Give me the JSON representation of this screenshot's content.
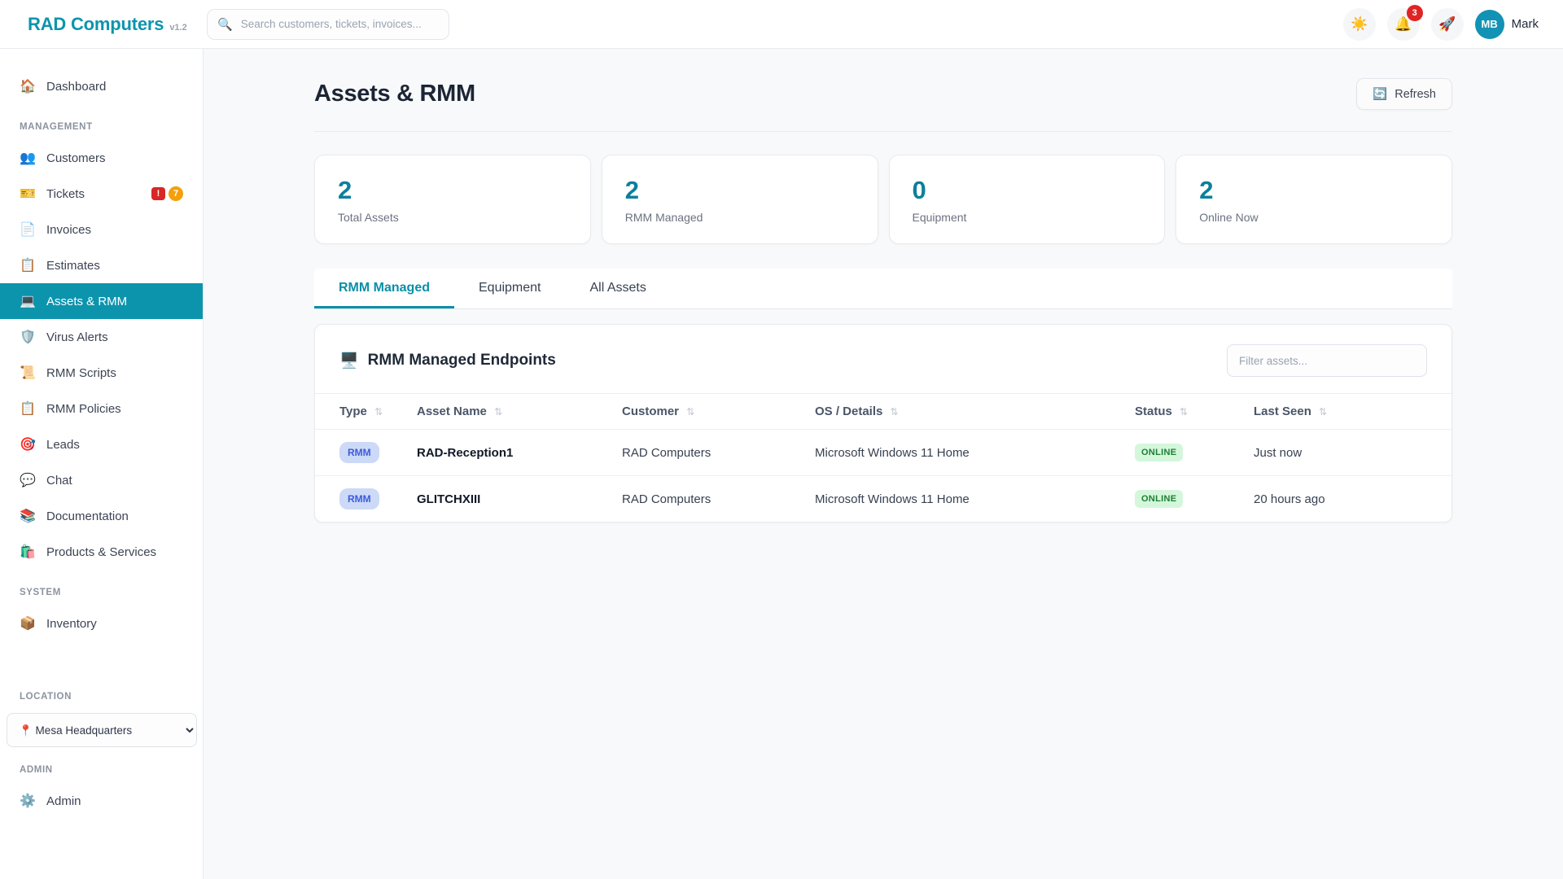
{
  "header": {
    "logo": "RAD Computers",
    "version": "v1.2",
    "search_icon": "🔍",
    "search_placeholder": "Search customers, tickets, invoices...",
    "theme_icon": "☀️",
    "bell_icon": "🔔",
    "bell_badge": "3",
    "rocket_icon": "🚀",
    "avatar_initials": "MB",
    "user_name": "Mark"
  },
  "sidebar": {
    "sections": {
      "management": "MANAGEMENT",
      "system": "SYSTEM",
      "location": "LOCATION",
      "admin": "ADMIN"
    },
    "items": [
      {
        "icon": "🏠",
        "label": "Dashboard"
      },
      {
        "icon": "👥",
        "label": "Customers"
      },
      {
        "icon": "🎫",
        "label": "Tickets",
        "badge_alert": "!",
        "badge_count": "7"
      },
      {
        "icon": "📄",
        "label": "Invoices"
      },
      {
        "icon": "📋",
        "label": "Estimates"
      },
      {
        "icon": "💻",
        "label": "Assets & RMM"
      },
      {
        "icon": "🛡️",
        "label": "Virus Alerts"
      },
      {
        "icon": "📜",
        "label": "RMM Scripts"
      },
      {
        "icon": "📋",
        "label": "RMM Policies"
      },
      {
        "icon": "🎯",
        "label": "Leads"
      },
      {
        "icon": "💬",
        "label": "Chat"
      },
      {
        "icon": "📚",
        "label": "Documentation"
      },
      {
        "icon": "🛍️",
        "label": "Products & Services"
      },
      {
        "icon": "📦",
        "label": "Inventory"
      },
      {
        "icon": "⚙️",
        "label": "Admin"
      }
    ],
    "location_select": {
      "display": "📍 Mesa Headquarters"
    }
  },
  "page": {
    "title": "Assets & RMM",
    "refresh_icon": "🔄",
    "refresh_label": "Refresh"
  },
  "stats": [
    {
      "value": "2",
      "label": "Total Assets"
    },
    {
      "value": "2",
      "label": "RMM Managed"
    },
    {
      "value": "0",
      "label": "Equipment"
    },
    {
      "value": "2",
      "label": "Online Now"
    }
  ],
  "tabs": [
    {
      "label": "RMM Managed"
    },
    {
      "label": "Equipment"
    },
    {
      "label": "All Assets"
    }
  ],
  "endpoints": {
    "icon": "🖥️",
    "title": "RMM Managed Endpoints",
    "filter_placeholder": "Filter assets...",
    "sort_icon": "⇅",
    "columns": [
      "Type",
      "Asset Name",
      "Customer",
      "OS / Details",
      "Status",
      "Last Seen"
    ],
    "rows": [
      {
        "type_badge": "RMM",
        "asset_name": "RAD-Reception1",
        "customer": "RAD Computers",
        "os": "Microsoft Windows 11 Home",
        "status": "ONLINE",
        "last_seen": "Just now"
      },
      {
        "type_badge": "RMM",
        "asset_name": "GLITCHXIII",
        "customer": "RAD Computers",
        "os": "Microsoft Windows 11 Home",
        "status": "ONLINE",
        "last_seen": "20 hours ago"
      }
    ]
  },
  "colors": {
    "accent": "#0d94ad",
    "stat_number": "#0c7f9d",
    "online_bg": "#d4f7dc",
    "online_text": "#1e7e34",
    "rmm_bg": "#ccd9f7",
    "rmm_text": "#3b5bdb"
  }
}
